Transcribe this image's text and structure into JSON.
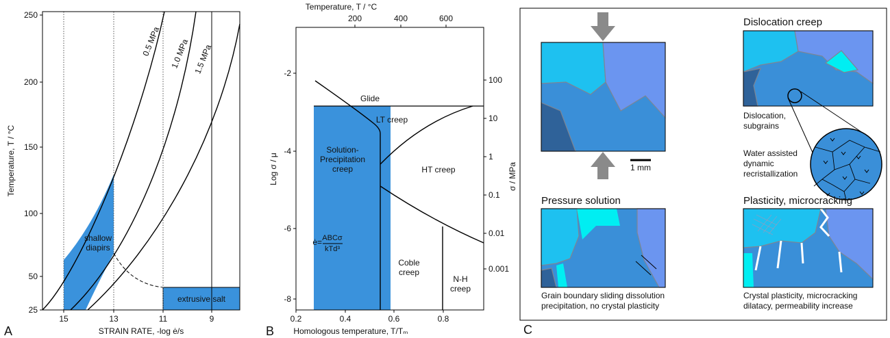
{
  "panel_a": {
    "label": "A",
    "y_axis_label": "Temperature, T / °C",
    "x_axis_label": "STRAIN RATE, -log ė/s",
    "y_ticks": [
      250,
      200,
      150,
      100,
      50,
      25
    ],
    "x_ticks": [
      15,
      13,
      11,
      9
    ],
    "curve_labels": [
      "0.5 MPa",
      "1.0 MPa",
      "1.5 MPa"
    ],
    "shallow_diapirs": [
      "shallow",
      "diapirs"
    ],
    "extrusive_salt": "extrusive salt"
  },
  "panel_b": {
    "label": "B",
    "top_axis_label": "Temperature, T / °C",
    "top_ticks": [
      200,
      400,
      600
    ],
    "x_axis_label": "Homologous temperature, T/Tₘ",
    "x_ticks": [
      0.2,
      0.4,
      0.6,
      0.8
    ],
    "y_axis_label": "Log σ / μ",
    "y_ticks": [
      -2,
      -4,
      -6,
      -8
    ],
    "y2_axis_label": "σ / MPa",
    "y2_ticks": [
      100,
      10,
      1,
      0.1,
      0.01,
      0.001
    ],
    "glide": "Glide",
    "lt_creep": "LT creep",
    "ht_creep": "HT creep",
    "solution_precipitation": [
      "Solution-",
      "Precipitation",
      "creep"
    ],
    "coble": [
      "Coble",
      "creep"
    ],
    "nh": [
      "N-H",
      "creep"
    ],
    "equation": {
      "lhs": "ė=",
      "numerator": "ABCσ",
      "denominator": "kTd³"
    }
  },
  "panel_c": {
    "label": "C",
    "scale_bar": "1 mm",
    "dislocation": {
      "title": "Dislocation creep",
      "note_1": [
        "Dislocation,",
        "subgrains"
      ],
      "note_2": [
        "Water assisted",
        "dynamic",
        "recristallization"
      ]
    },
    "pressure_solution": {
      "title": "Pressure solution",
      "caption": [
        "Grain boundary sliding dissolution",
        "precipitation, no crystal plasticity"
      ]
    },
    "plasticity": {
      "title": "Plasticity, microcracking",
      "caption": [
        "Crystal plasticity, microcracking",
        "dilatacy, permeability increase"
      ]
    }
  }
}
